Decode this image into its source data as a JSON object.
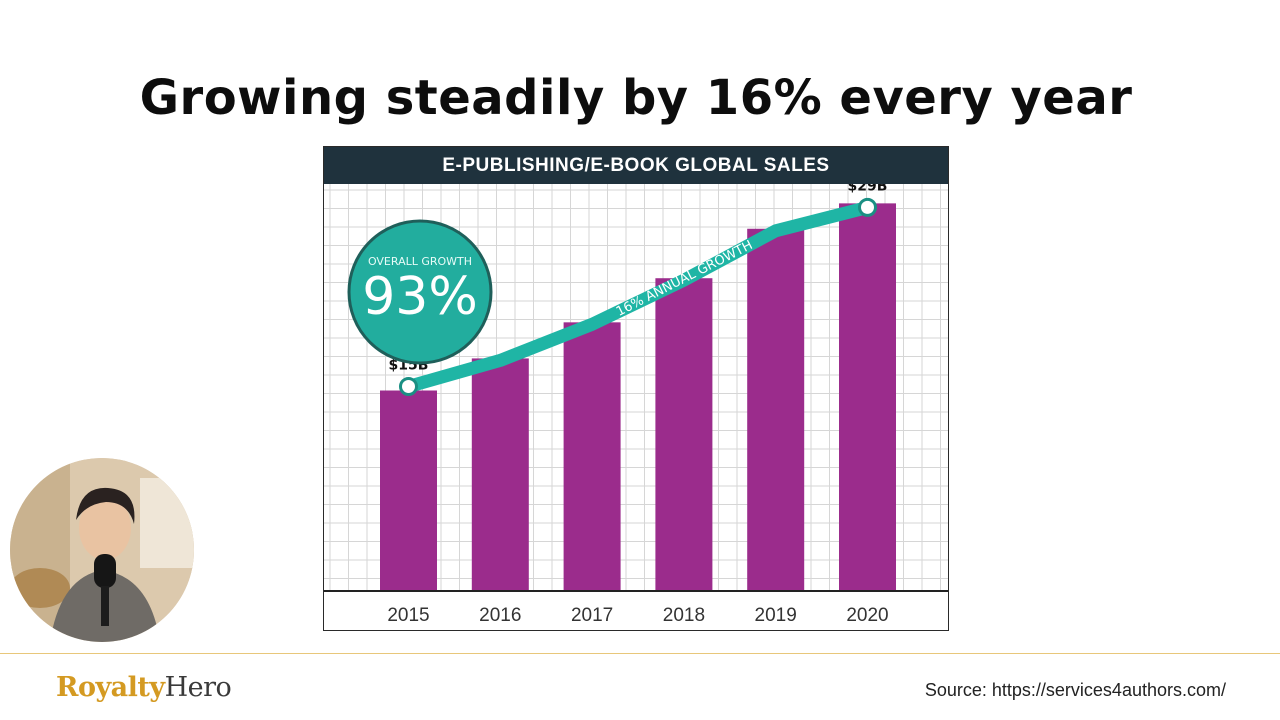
{
  "slide": {
    "title": "Growing steadily by 16% every year"
  },
  "chart_data": {
    "type": "bar",
    "title": "E-PUBLISHING/E-BOOK GLOBAL SALES",
    "categories": [
      "2015",
      "2016",
      "2017",
      "2018",
      "2019",
      "2020"
    ],
    "values": [
      15,
      17.4,
      20.1,
      23.4,
      27.1,
      29
    ],
    "units": "$B",
    "ylim": [
      0,
      30
    ],
    "data_labels": [
      {
        "category": "2015",
        "label": "$15B"
      },
      {
        "category": "2020",
        "label": "$29B"
      }
    ],
    "trend_line": {
      "label": "16% ANNUAL GROWTH",
      "values": [
        15,
        17.4,
        20.1,
        23.4,
        27.1,
        29
      ]
    },
    "badge": {
      "caption": "OVERALL GROWTH",
      "value": "93%"
    },
    "xlabel": "",
    "ylabel": "",
    "grid": true
  },
  "colors": {
    "bar": "#9b2c8c",
    "trend": "#1fb5a5",
    "badge": "#22ad9e",
    "header": "#1f323d"
  },
  "footer": {
    "logo_part1": "Royalty",
    "logo_part2": "Hero",
    "source": "Source: https://services4authors.com/"
  }
}
